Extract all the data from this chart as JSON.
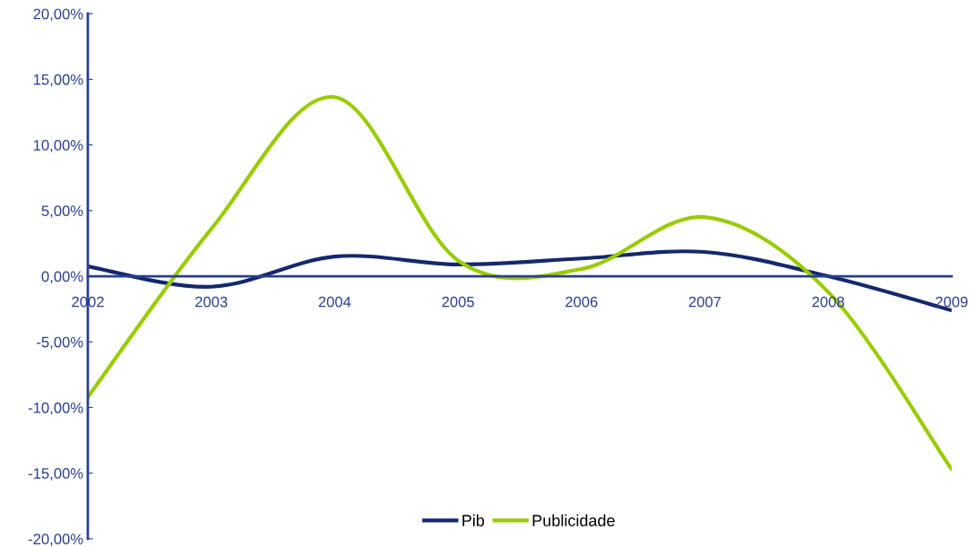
{
  "chart_data": {
    "type": "line",
    "categories": [
      "2002",
      "2003",
      "2004",
      "2005",
      "2006",
      "2007",
      "2008",
      "2009"
    ],
    "series": [
      {
        "name": "Pib",
        "color": "#14286e",
        "values": [
          0.75,
          -0.8,
          1.5,
          0.9,
          1.35,
          1.85,
          0.0,
          -2.6
        ]
      },
      {
        "name": "Publicidade",
        "color": "#99cc00",
        "values": [
          -9.2,
          3.6,
          13.65,
          1.2,
          0.55,
          4.5,
          -1.2,
          -14.7
        ]
      }
    ],
    "ylim": [
      -20,
      20
    ],
    "yticks": [
      {
        "value": -20,
        "label": "-20,00%"
      },
      {
        "value": -15,
        "label": "-15,00%"
      },
      {
        "value": -10,
        "label": "-10,00%"
      },
      {
        "value": -5,
        "label": "-5,00%"
      },
      {
        "value": 0,
        "label": "0,00%"
      },
      {
        "value": 5,
        "label": "5,00%"
      },
      {
        "value": 10,
        "label": "10,00%"
      },
      {
        "value": 15,
        "label": "15,00%"
      },
      {
        "value": 20,
        "label": "20,00%"
      }
    ],
    "grid": false,
    "legend": "bottom",
    "marker": "none",
    "line_style": "solid"
  }
}
